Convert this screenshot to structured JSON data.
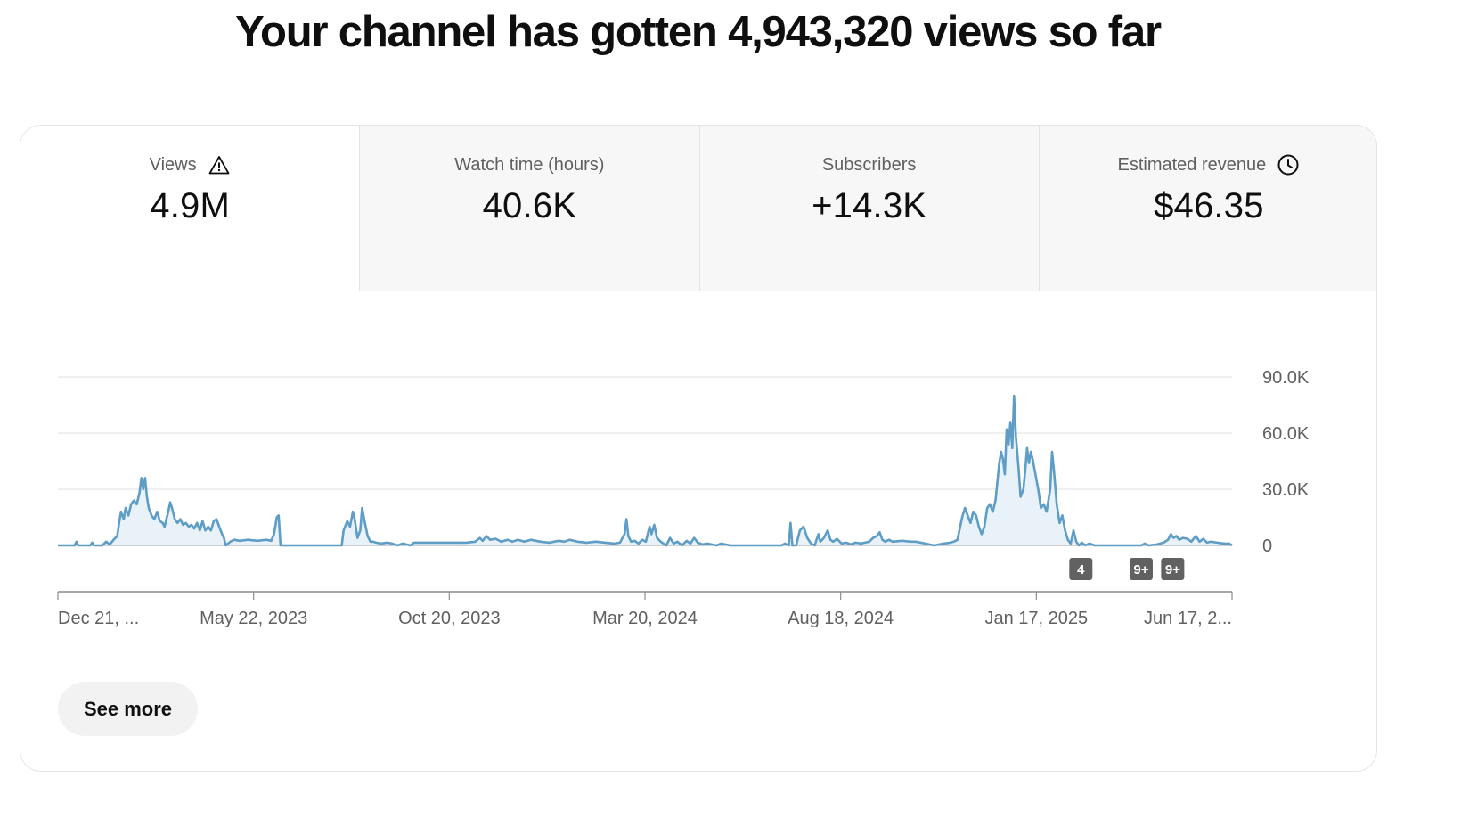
{
  "headline": "Your channel has gotten 4,943,320 views so far",
  "tabs": [
    {
      "label": "Views",
      "value": "4.9M",
      "icon": "warning-icon",
      "active": true
    },
    {
      "label": "Watch time (hours)",
      "value": "40.6K",
      "active": false
    },
    {
      "label": "Subscribers",
      "value": "+14.3K",
      "active": false
    },
    {
      "label": "Estimated revenue",
      "value": "$46.35",
      "icon": "clock-icon",
      "active": false
    }
  ],
  "see_more_label": "See more",
  "colors": {
    "line": "#5d9dc6",
    "fill": "#e9f2f8",
    "grid": "#e0e0e0",
    "badge": "#616161"
  },
  "chart_data": {
    "type": "area",
    "title": "",
    "xlabel": "",
    "ylabel": "",
    "x_tick_labels": [
      "Dec 21, ...",
      "May 22, 2023",
      "Oct 20, 2023",
      "Mar 20, 2024",
      "Aug 18, 2024",
      "Jan 17, 2025",
      "Jun 17, 2..."
    ],
    "y_tick_labels": [
      "0",
      "30.0K",
      "60.0K",
      "90.0K"
    ],
    "ylim": [
      0,
      90000
    ],
    "grid": true,
    "series": [
      {
        "values": [
          [
            0,
            0
          ],
          [
            18,
            0
          ],
          [
            20,
            2000
          ],
          [
            22,
            0
          ],
          [
            35,
            0
          ],
          [
            37,
            1500
          ],
          [
            39,
            0
          ],
          [
            48,
            0
          ],
          [
            52,
            2000
          ],
          [
            56,
            500
          ],
          [
            60,
            3000
          ],
          [
            64,
            5000
          ],
          [
            66,
            12000
          ],
          [
            68,
            18000
          ],
          [
            71,
            14000
          ],
          [
            73,
            20000
          ],
          [
            76,
            16000
          ],
          [
            79,
            22000
          ],
          [
            82,
            24000
          ],
          [
            85,
            22000
          ],
          [
            88,
            28000
          ],
          [
            90,
            36000
          ],
          [
            92,
            30000
          ],
          [
            94,
            36000
          ],
          [
            96,
            26000
          ],
          [
            98,
            20000
          ],
          [
            101,
            16000
          ],
          [
            104,
            14000
          ],
          [
            107,
            18000
          ],
          [
            110,
            13000
          ],
          [
            113,
            12000
          ],
          [
            115,
            10000
          ],
          [
            117,
            14000
          ],
          [
            119,
            18000
          ],
          [
            121,
            23000
          ],
          [
            123,
            20000
          ],
          [
            126,
            14000
          ],
          [
            129,
            12000
          ],
          [
            132,
            14000
          ],
          [
            135,
            11000
          ],
          [
            138,
            12000
          ],
          [
            141,
            10000
          ],
          [
            144,
            11000
          ],
          [
            147,
            9000
          ],
          [
            150,
            12000
          ],
          [
            153,
            8000
          ],
          [
            156,
            13000
          ],
          [
            159,
            8000
          ],
          [
            162,
            10000
          ],
          [
            165,
            8000
          ],
          [
            168,
            13000
          ],
          [
            171,
            14000
          ],
          [
            174,
            10000
          ],
          [
            177,
            6000
          ],
          [
            179,
            4000
          ],
          [
            181,
            0
          ],
          [
            186,
            2000
          ],
          [
            190,
            3000
          ],
          [
            196,
            2500
          ],
          [
            205,
            3000
          ],
          [
            215,
            2500
          ],
          [
            225,
            3000
          ],
          [
            230,
            2500
          ],
          [
            233,
            6000
          ],
          [
            236,
            15000
          ],
          [
            238,
            16000
          ],
          [
            240,
            0
          ],
          [
            246,
            0
          ],
          [
            300,
            0
          ],
          [
            306,
            0
          ],
          [
            308,
            8000
          ],
          [
            312,
            13000
          ],
          [
            315,
            10000
          ],
          [
            318,
            18000
          ],
          [
            320,
            14000
          ],
          [
            323,
            4000
          ],
          [
            326,
            8000
          ],
          [
            328,
            20000
          ],
          [
            331,
            12000
          ],
          [
            334,
            5000
          ],
          [
            337,
            2000
          ],
          [
            340,
            2000
          ],
          [
            343,
            1500
          ],
          [
            348,
            1000
          ],
          [
            355,
            1500
          ],
          [
            360,
            1000
          ],
          [
            366,
            0
          ],
          [
            372,
            1000
          ],
          [
            380,
            0
          ],
          [
            384,
            1500
          ],
          [
            400,
            1500
          ],
          [
            440,
            1500
          ],
          [
            450,
            2000
          ],
          [
            455,
            4000
          ],
          [
            458,
            2500
          ],
          [
            462,
            5000
          ],
          [
            466,
            3000
          ],
          [
            472,
            3500
          ],
          [
            478,
            2000
          ],
          [
            485,
            3000
          ],
          [
            490,
            2000
          ],
          [
            496,
            3000
          ],
          [
            503,
            2000
          ],
          [
            510,
            3000
          ],
          [
            520,
            2000
          ],
          [
            530,
            1500
          ],
          [
            540,
            2500
          ],
          [
            546,
            2000
          ],
          [
            552,
            3000
          ],
          [
            560,
            2000
          ],
          [
            570,
            1500
          ],
          [
            580,
            2000
          ],
          [
            590,
            1500
          ],
          [
            600,
            1000
          ],
          [
            606,
            1500
          ],
          [
            611,
            6000
          ],
          [
            613,
            14000
          ],
          [
            615,
            5000
          ],
          [
            618,
            2000
          ],
          [
            622,
            2500
          ],
          [
            626,
            1000
          ],
          [
            630,
            3000
          ],
          [
            634,
            2000
          ],
          [
            638,
            10000
          ],
          [
            640,
            6000
          ],
          [
            643,
            11000
          ],
          [
            646,
            4000
          ],
          [
            650,
            2000
          ],
          [
            656,
            0
          ],
          [
            660,
            4000
          ],
          [
            664,
            1000
          ],
          [
            668,
            2000
          ],
          [
            673,
            0
          ],
          [
            678,
            2500
          ],
          [
            682,
            1000
          ],
          [
            686,
            4000
          ],
          [
            690,
            1500
          ],
          [
            695,
            500
          ],
          [
            700,
            1000
          ],
          [
            710,
            0
          ],
          [
            715,
            1000
          ],
          [
            725,
            0
          ],
          [
            740,
            0
          ],
          [
            760,
            0
          ],
          [
            780,
            0
          ],
          [
            784,
            1000
          ],
          [
            788,
            0
          ],
          [
            790,
            12000
          ],
          [
            792,
            0
          ],
          [
            796,
            0
          ],
          [
            800,
            8000
          ],
          [
            804,
            10000
          ],
          [
            808,
            4000
          ],
          [
            812,
            1000
          ],
          [
            816,
            0
          ],
          [
            820,
            6000
          ],
          [
            822,
            2000
          ],
          [
            826,
            4000
          ],
          [
            830,
            8000
          ],
          [
            833,
            3000
          ],
          [
            836,
            2000
          ],
          [
            840,
            3500
          ],
          [
            845,
            1000
          ],
          [
            850,
            1500
          ],
          [
            855,
            500
          ],
          [
            860,
            1500
          ],
          [
            866,
            1000
          ],
          [
            870,
            1500
          ],
          [
            875,
            2000
          ],
          [
            879,
            4000
          ],
          [
            883,
            5000
          ],
          [
            886,
            7000
          ],
          [
            889,
            3000
          ],
          [
            892,
            2000
          ],
          [
            896,
            3000
          ],
          [
            900,
            2000
          ],
          [
            910,
            2500
          ],
          [
            920,
            2000
          ],
          [
            925,
            2000
          ],
          [
            935,
            1000
          ],
          [
            945,
            0
          ],
          [
            955,
            1000
          ],
          [
            962,
            1500
          ],
          [
            966,
            2000
          ],
          [
            970,
            3000
          ],
          [
            975,
            15000
          ],
          [
            978,
            20000
          ],
          [
            981,
            16000
          ],
          [
            984,
            12000
          ],
          [
            987,
            18000
          ],
          [
            990,
            16000
          ],
          [
            993,
            10000
          ],
          [
            996,
            6000
          ],
          [
            999,
            10000
          ],
          [
            1002,
            20000
          ],
          [
            1005,
            22000
          ],
          [
            1008,
            18000
          ],
          [
            1011,
            24000
          ],
          [
            1013,
            34000
          ],
          [
            1015,
            44000
          ],
          [
            1017,
            50000
          ],
          [
            1019,
            46000
          ],
          [
            1021,
            38000
          ],
          [
            1023,
            62000
          ],
          [
            1025,
            54000
          ],
          [
            1027,
            66000
          ],
          [
            1029,
            52000
          ],
          [
            1031,
            80000
          ],
          [
            1033,
            58000
          ],
          [
            1036,
            40000
          ],
          [
            1038,
            26000
          ],
          [
            1041,
            30000
          ],
          [
            1043,
            40000
          ],
          [
            1045,
            52000
          ],
          [
            1047,
            44000
          ],
          [
            1049,
            50000
          ],
          [
            1051,
            46000
          ],
          [
            1054,
            38000
          ],
          [
            1057,
            30000
          ],
          [
            1060,
            20000
          ],
          [
            1063,
            22000
          ],
          [
            1066,
            18000
          ],
          [
            1070,
            30000
          ],
          [
            1072,
            50000
          ],
          [
            1074,
            40000
          ],
          [
            1077,
            22000
          ],
          [
            1080,
            12000
          ],
          [
            1083,
            16000
          ],
          [
            1086,
            8000
          ],
          [
            1089,
            3000
          ],
          [
            1092,
            1000
          ],
          [
            1095,
            8000
          ],
          [
            1098,
            2000
          ],
          [
            1101,
            0
          ],
          [
            1104,
            1500
          ],
          [
            1108,
            0
          ],
          [
            1112,
            1000
          ],
          [
            1118,
            0
          ],
          [
            1130,
            0
          ],
          [
            1150,
            0
          ],
          [
            1168,
            0
          ],
          [
            1172,
            1000
          ],
          [
            1176,
            0
          ],
          [
            1185,
            500
          ],
          [
            1192,
            1500
          ],
          [
            1197,
            3000
          ],
          [
            1200,
            6000
          ],
          [
            1203,
            4000
          ],
          [
            1206,
            5000
          ],
          [
            1209,
            3000
          ],
          [
            1213,
            4000
          ],
          [
            1218,
            3500
          ],
          [
            1222,
            2000
          ],
          [
            1227,
            5000
          ],
          [
            1231,
            2000
          ],
          [
            1235,
            3500
          ],
          [
            1239,
            1500
          ],
          [
            1243,
            2000
          ],
          [
            1250,
            1500
          ],
          [
            1257,
            1000
          ],
          [
            1263,
            1000
          ],
          [
            1266,
            0
          ]
        ]
      }
    ],
    "annotations": [
      {
        "x_index": 1103,
        "label": "4"
      },
      {
        "x_index": 1168,
        "label": "9+"
      },
      {
        "x_index": 1202,
        "label": "9+"
      }
    ]
  }
}
